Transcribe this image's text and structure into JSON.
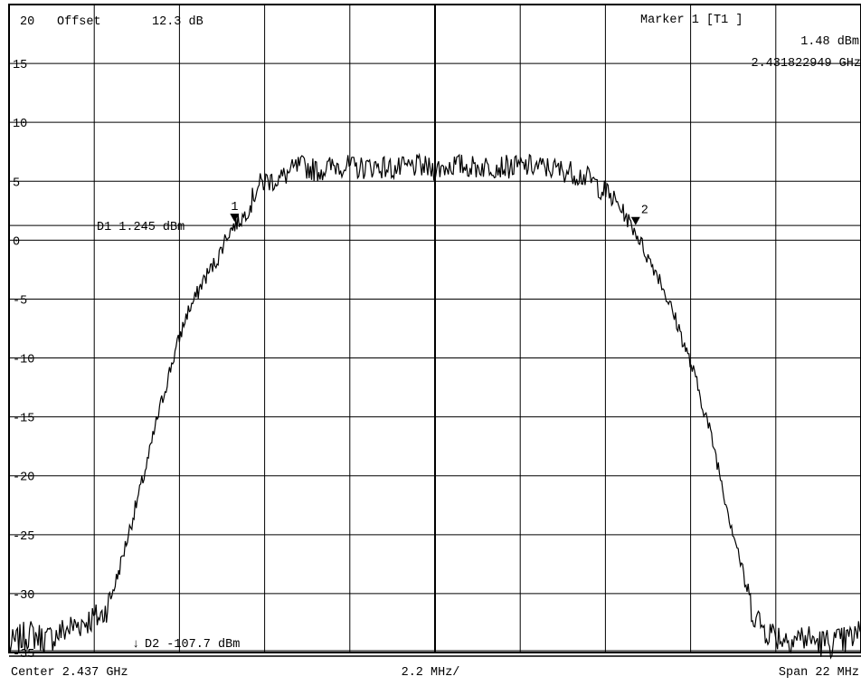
{
  "header": {
    "ref_level_label": "20",
    "offset_label": "Offset",
    "offset_value": "12.3 dB"
  },
  "marker_info": {
    "title": "Marker 1 [T1 ]",
    "level": "1.48 dBm",
    "frequency": "2.431822949 GHz"
  },
  "display_lines": {
    "d1": {
      "label": "D1 1.245 dBm",
      "value_dbm": 1.245
    },
    "d2": {
      "label": "D2 -107.7 dBm",
      "value_dbm": -107.7,
      "arrow": "↓"
    }
  },
  "markers": [
    {
      "id": "1",
      "freq_ghz": 2.431822949,
      "level_dbm": 1.48
    },
    {
      "id": "2",
      "freq_ghz": 2.44218,
      "level_dbm": 1.2
    }
  ],
  "footer": {
    "center": "Center 2.437 GHz",
    "div": "2.2 MHz/",
    "span": "Span 22 MHz"
  },
  "chart_data": {
    "type": "line",
    "title": "",
    "xlabel": "",
    "ylabel": "",
    "x_unit": "GHz",
    "y_unit": "dBm",
    "xlim": [
      2.426,
      2.448
    ],
    "ylim": [
      -35,
      20
    ],
    "y_ticks": [
      15,
      10,
      5,
      0,
      -5,
      -10,
      -15,
      -20,
      -25,
      -30,
      -35
    ],
    "grid": true,
    "series": [
      {
        "x": [
          2.426,
          2.4265,
          2.427,
          2.4275,
          2.428,
          2.4284,
          2.4286,
          2.4288,
          2.429,
          2.4292,
          2.4294,
          2.4296,
          2.4298,
          2.43,
          2.4302,
          2.4304,
          2.4306,
          2.4308,
          2.431,
          2.4312,
          2.4314,
          2.4316,
          2.4318,
          2.432,
          2.4322,
          2.4324,
          2.4326,
          2.433,
          2.4335,
          2.434,
          2.4345,
          2.435,
          2.4355,
          2.436,
          2.4365,
          2.437,
          2.4375,
          2.438,
          2.4385,
          2.439,
          2.4395,
          2.44,
          2.4405,
          2.441,
          2.4415,
          2.4418,
          2.442,
          2.4422,
          2.4425,
          2.4428,
          2.443,
          2.4433,
          2.4435,
          2.4437,
          2.444,
          2.4442,
          2.4444,
          2.4446,
          2.4448,
          2.445,
          2.4452,
          2.4455,
          2.446,
          2.4465,
          2.447,
          2.4475,
          2.448
        ],
        "y": [
          -34.5,
          -33.4,
          -33.9,
          -33.0,
          -32.3,
          -31.9,
          -30.6,
          -28.5,
          -26.0,
          -23.5,
          -21.0,
          -18.5,
          -15.5,
          -13.0,
          -10.5,
          -8.3,
          -6.2,
          -5.0,
          -3.5,
          -2.5,
          -1.5,
          0.3,
          1.2,
          1.8,
          2.7,
          4.5,
          5.0,
          5.2,
          6.3,
          5.9,
          6.4,
          6.1,
          6.3,
          6.0,
          6.3,
          6.0,
          6.4,
          6.2,
          6.3,
          6.2,
          6.3,
          6.1,
          5.8,
          5.2,
          3.8,
          2.7,
          1.6,
          0.6,
          -1.5,
          -3.2,
          -5.0,
          -7.5,
          -9.5,
          -11.5,
          -15.0,
          -17.5,
          -20.5,
          -23.5,
          -26.0,
          -29.0,
          -31.5,
          -33.0,
          -33.8,
          -33.7,
          -34.2,
          -34.1,
          -33.4
        ]
      }
    ]
  }
}
